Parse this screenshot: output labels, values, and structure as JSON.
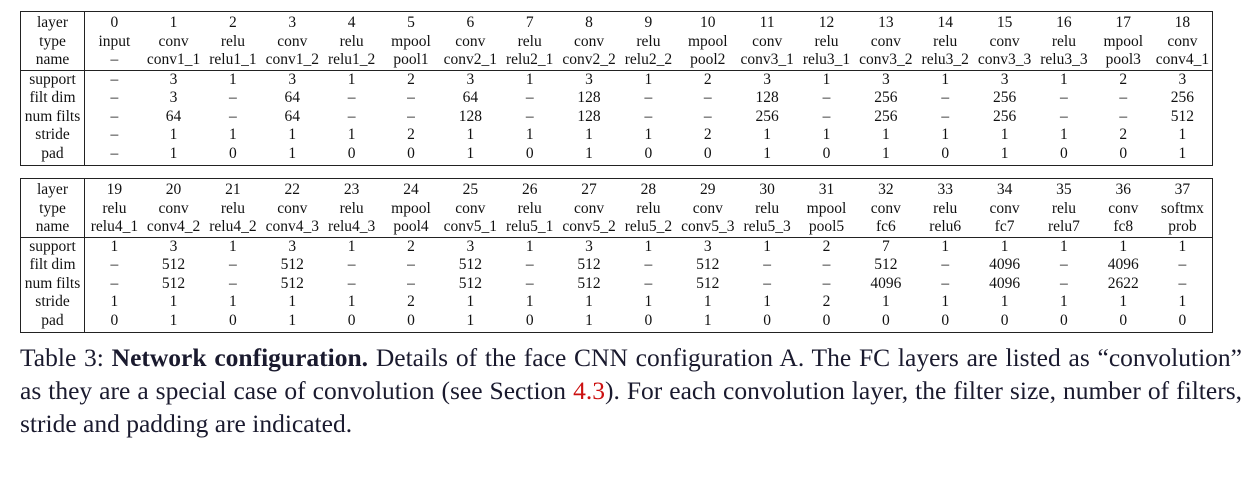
{
  "tables": [
    {
      "rows": [
        {
          "label": "layer",
          "cells": [
            "0",
            "1",
            "2",
            "3",
            "4",
            "5",
            "6",
            "7",
            "8",
            "9",
            "10",
            "11",
            "12",
            "13",
            "14",
            "15",
            "16",
            "17",
            "18"
          ]
        },
        {
          "label": "type",
          "cells": [
            "input",
            "conv",
            "relu",
            "conv",
            "relu",
            "mpool",
            "conv",
            "relu",
            "conv",
            "relu",
            "mpool",
            "conv",
            "relu",
            "conv",
            "relu",
            "conv",
            "relu",
            "mpool",
            "conv"
          ]
        },
        {
          "label": "name",
          "cells": [
            "–",
            "conv1_1",
            "relu1_1",
            "conv1_2",
            "relu1_2",
            "pool1",
            "conv2_1",
            "relu2_1",
            "conv2_2",
            "relu2_2",
            "pool2",
            "conv3_1",
            "relu3_1",
            "conv3_2",
            "relu3_2",
            "conv3_3",
            "relu3_3",
            "pool3",
            "conv4_1"
          ]
        },
        {
          "label": "support",
          "cells": [
            "–",
            "3",
            "1",
            "3",
            "1",
            "2",
            "3",
            "1",
            "3",
            "1",
            "2",
            "3",
            "1",
            "3",
            "1",
            "3",
            "1",
            "2",
            "3"
          ]
        },
        {
          "label": "filt dim",
          "cells": [
            "–",
            "3",
            "–",
            "64",
            "–",
            "–",
            "64",
            "–",
            "128",
            "–",
            "–",
            "128",
            "–",
            "256",
            "–",
            "256",
            "–",
            "–",
            "256"
          ]
        },
        {
          "label": "num filts",
          "cells": [
            "–",
            "64",
            "–",
            "64",
            "–",
            "–",
            "128",
            "–",
            "128",
            "–",
            "–",
            "256",
            "–",
            "256",
            "–",
            "256",
            "–",
            "–",
            "512"
          ]
        },
        {
          "label": "stride",
          "cells": [
            "–",
            "1",
            "1",
            "1",
            "1",
            "2",
            "1",
            "1",
            "1",
            "1",
            "2",
            "1",
            "1",
            "1",
            "1",
            "1",
            "1",
            "2",
            "1"
          ]
        },
        {
          "label": "pad",
          "cells": [
            "–",
            "1",
            "0",
            "1",
            "0",
            "0",
            "1",
            "0",
            "1",
            "0",
            "0",
            "1",
            "0",
            "1",
            "0",
            "1",
            "0",
            "0",
            "1"
          ]
        }
      ]
    },
    {
      "rows": [
        {
          "label": "layer",
          "cells": [
            "19",
            "20",
            "21",
            "22",
            "23",
            "24",
            "25",
            "26",
            "27",
            "28",
            "29",
            "30",
            "31",
            "32",
            "33",
            "34",
            "35",
            "36",
            "37"
          ]
        },
        {
          "label": "type",
          "cells": [
            "relu",
            "conv",
            "relu",
            "conv",
            "relu",
            "mpool",
            "conv",
            "relu",
            "conv",
            "relu",
            "conv",
            "relu",
            "mpool",
            "conv",
            "relu",
            "conv",
            "relu",
            "conv",
            "softmx"
          ]
        },
        {
          "label": "name",
          "cells": [
            "relu4_1",
            "conv4_2",
            "relu4_2",
            "conv4_3",
            "relu4_3",
            "pool4",
            "conv5_1",
            "relu5_1",
            "conv5_2",
            "relu5_2",
            "conv5_3",
            "relu5_3",
            "pool5",
            "fc6",
            "relu6",
            "fc7",
            "relu7",
            "fc8",
            "prob"
          ]
        },
        {
          "label": "support",
          "cells": [
            "1",
            "3",
            "1",
            "3",
            "1",
            "2",
            "3",
            "1",
            "3",
            "1",
            "3",
            "1",
            "2",
            "7",
            "1",
            "1",
            "1",
            "1",
            "1"
          ]
        },
        {
          "label": "filt dim",
          "cells": [
            "–",
            "512",
            "–",
            "512",
            "–",
            "–",
            "512",
            "–",
            "512",
            "–",
            "512",
            "–",
            "–",
            "512",
            "–",
            "4096",
            "–",
            "4096",
            "–"
          ]
        },
        {
          "label": "num filts",
          "cells": [
            "–",
            "512",
            "–",
            "512",
            "–",
            "–",
            "512",
            "–",
            "512",
            "–",
            "512",
            "–",
            "–",
            "4096",
            "–",
            "4096",
            "–",
            "2622",
            "–"
          ]
        },
        {
          "label": "stride",
          "cells": [
            "1",
            "1",
            "1",
            "1",
            "1",
            "2",
            "1",
            "1",
            "1",
            "1",
            "1",
            "1",
            "2",
            "1",
            "1",
            "1",
            "1",
            "1",
            "1"
          ]
        },
        {
          "label": "pad",
          "cells": [
            "0",
            "1",
            "0",
            "1",
            "0",
            "0",
            "1",
            "0",
            "1",
            "0",
            "1",
            "0",
            "0",
            "0",
            "0",
            "0",
            "0",
            "0",
            "0"
          ]
        }
      ]
    }
  ],
  "caption": {
    "prefix": "Table 3: ",
    "bold": "Network configuration.",
    "text1": " Details of the face CNN configuration A. The FC layers are listed as “convolution” as they are a special case of convolution (see Section ",
    "ref": "4.3",
    "text2": "). For each convolution layer, the filter size, number of filters, stride and padding are indicated."
  }
}
